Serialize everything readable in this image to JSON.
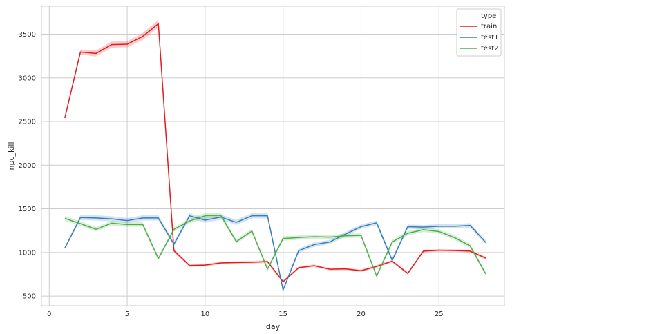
{
  "chart_data": {
    "type": "line",
    "xlabel": "day",
    "ylabel": "npc_kill",
    "xlim": [
      -0.5,
      29.2
    ],
    "ylim": [
      390,
      3820
    ],
    "xticks": [
      0,
      5,
      10,
      15,
      20,
      25
    ],
    "yticks": [
      500,
      1000,
      1500,
      2000,
      2500,
      3000,
      3500
    ],
    "grid": true,
    "legend": {
      "title": "type",
      "position": "top-right"
    },
    "x": [
      1,
      2,
      3,
      4,
      5,
      6,
      7,
      8,
      9,
      10,
      11,
      12,
      13,
      14,
      15,
      16,
      17,
      18,
      19,
      20,
      21,
      22,
      23,
      24,
      25,
      26,
      27,
      28
    ],
    "series": [
      {
        "name": "train",
        "color": "#e41a1c",
        "values": [
          2540,
          3295,
          3280,
          3380,
          3385,
          3475,
          3620,
          1020,
          850,
          855,
          880,
          885,
          888,
          895,
          665,
          825,
          848,
          808,
          812,
          790,
          840,
          900,
          760,
          1015,
          1025,
          1022,
          1015,
          935
        ],
        "band": [
          20,
          30,
          35,
          35,
          35,
          40,
          45,
          20,
          15,
          15,
          15,
          15,
          15,
          15,
          15,
          15,
          15,
          15,
          15,
          15,
          15,
          15,
          15,
          15,
          15,
          15,
          15,
          15
        ]
      },
      {
        "name": "test1",
        "color": "#377eb8",
        "values": [
          1050,
          1400,
          1395,
          1385,
          1365,
          1395,
          1395,
          1095,
          1420,
          1370,
          1405,
          1345,
          1420,
          1420,
          570,
          1020,
          1090,
          1120,
          1210,
          1295,
          1340,
          910,
          1295,
          1290,
          1300,
          1300,
          1310,
          1115
        ],
        "band": [
          15,
          30,
          30,
          30,
          30,
          30,
          30,
          25,
          30,
          30,
          30,
          30,
          30,
          30,
          20,
          25,
          25,
          25,
          25,
          25,
          25,
          25,
          25,
          25,
          25,
          25,
          25,
          25
        ]
      },
      {
        "name": "test2",
        "color": "#4daf4a",
        "values": [
          1390,
          1330,
          1265,
          1335,
          1320,
          1320,
          930,
          1265,
          1360,
          1420,
          1425,
          1125,
          1245,
          810,
          1160,
          1170,
          1180,
          1175,
          1190,
          1195,
          730,
          1120,
          1220,
          1260,
          1240,
          1170,
          1075,
          755
        ],
        "band": [
          25,
          25,
          25,
          25,
          25,
          25,
          20,
          25,
          25,
          30,
          30,
          25,
          25,
          20,
          25,
          25,
          25,
          25,
          25,
          25,
          20,
          25,
          25,
          25,
          25,
          25,
          25,
          20
        ]
      }
    ]
  }
}
